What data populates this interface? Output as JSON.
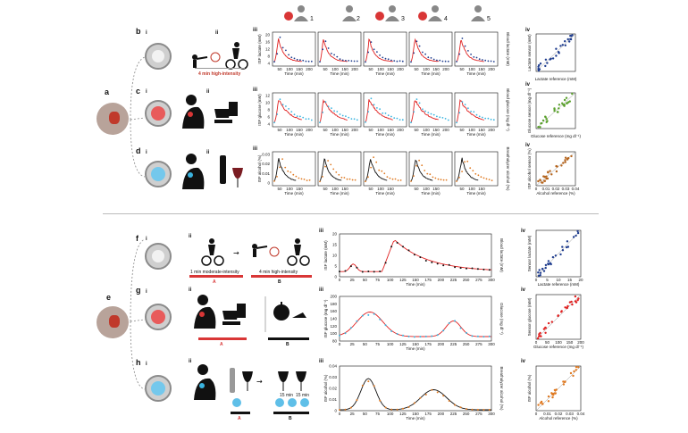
{
  "panel_letters": {
    "a": "a",
    "b": "b",
    "c": "c",
    "d": "d",
    "e": "e",
    "f": "f",
    "g": "g",
    "h": "h"
  },
  "subpanel_labels": {
    "i": "i",
    "ii": "ii",
    "iii": "iii",
    "iv": "iv"
  },
  "subjects": [
    "1",
    "2",
    "3",
    "4",
    "5"
  ],
  "top_section": {
    "b_caption": "4 min high-intensity",
    "row_b": {
      "left_axis": "ISF lactate (mM)",
      "right_axis": "Blood lactate (mM)",
      "x_label": "Time (min)",
      "y_ticks": [
        "20",
        "16",
        "12",
        "8",
        "4"
      ],
      "x_ticks": [
        "50",
        "100",
        "150",
        "200"
      ],
      "corr_y": "Lactate sensor (mM)",
      "corr_x": "Lactate reference (mM)"
    },
    "row_c": {
      "left_axis": "ISF glucose (mM)",
      "right_axis": "Blood glucose (mg dl⁻¹)",
      "x_label": "Time (min)",
      "y_ticks": [
        "12",
        "10",
        "8",
        "6",
        "4"
      ],
      "x_ticks": [
        "50",
        "100",
        "150",
        "200"
      ],
      "corr_y": "Glucose sensor (mg dl⁻¹)",
      "corr_x": "Glucose reference (mg dl⁻¹)"
    },
    "row_d": {
      "left_axis": "ISF alcohol (%)",
      "right_axis": "Breathalyzer alcohol (%)",
      "x_label": "Time (min)",
      "y_ticks": [
        "0.03",
        "0.02",
        "0.01",
        "0"
      ],
      "x_ticks": [
        "50",
        "100",
        "150"
      ],
      "corr_y": "ISF alcohol sensor (%)",
      "corr_x": "Alcohol reference (%)",
      "corr_x_ticks": [
        "0",
        "0.01",
        "0.02",
        "0.03",
        "0.04"
      ]
    }
  },
  "bottom_section": {
    "f_caption_a": "1 min moderate-intensity",
    "f_caption_b": "4 min high-intensity",
    "marker_a": "A",
    "marker_b": "B",
    "h_time_1": "15 min",
    "h_time_2": "15 min",
    "row_f": {
      "left_axis": "ISF lactate (mM)",
      "right_axis": "Blood lactate (mM)",
      "x_label": "Time (min)",
      "y_ticks": [
        "20",
        "15",
        "10",
        "5",
        "0"
      ],
      "x_ticks": [
        "0",
        "25",
        "50",
        "75",
        "100",
        "125",
        "150",
        "175",
        "200",
        "225",
        "250",
        "275",
        "300"
      ],
      "corr_y": "Sensor lactate (mM)",
      "corr_x": "Lactate reference (mM)",
      "corr_y_ticks": [
        "15",
        "10",
        "5",
        "0"
      ],
      "corr_x_ticks": [
        "0",
        "5",
        "10",
        "15",
        "20"
      ]
    },
    "row_g": {
      "left_axis": "ISF glucose (mg dl⁻¹)",
      "right_axis": "Glucose (mg dl⁻¹)",
      "x_label": "Time (min)",
      "y_ticks": [
        "200",
        "180",
        "160",
        "140",
        "120",
        "100",
        "80"
      ],
      "x_ticks": [
        "0",
        "25",
        "50",
        "75",
        "100",
        "125",
        "150",
        "175",
        "200",
        "225",
        "250",
        "275",
        "300"
      ],
      "corr_y": "Sensor glucose (mM)",
      "corr_x": "Glucose reference (mg dl⁻¹)",
      "corr_x_ticks": [
        "0",
        "50",
        "100",
        "150",
        "200"
      ]
    },
    "row_h": {
      "left_axis": "ISF alcohol (%)",
      "right_axis": "Breathalyzer alcohol (%)",
      "x_label": "Time (min)",
      "y_ticks": [
        "0.04",
        "0.03",
        "0.02",
        "0.01",
        "0"
      ],
      "x_ticks": [
        "0",
        "25",
        "50",
        "75",
        "100",
        "125",
        "150",
        "175",
        "200",
        "225",
        "250",
        "275",
        "300"
      ],
      "corr_y": "ISF alcohol (%)",
      "corr_x": "Alcohol reference (%)",
      "corr_x_ticks": [
        "0",
        "0.01",
        "0.02",
        "0.03",
        "0.04"
      ]
    }
  },
  "colors": {
    "lactate": "#1f3d8f",
    "glucose_red": "#e02020",
    "glucose_green": "#5aa02c",
    "alcohol": "#e07a22",
    "alcohol_dark": "#b5641c",
    "dark": "#111111",
    "cyan": "#3ab4e0"
  }
}
